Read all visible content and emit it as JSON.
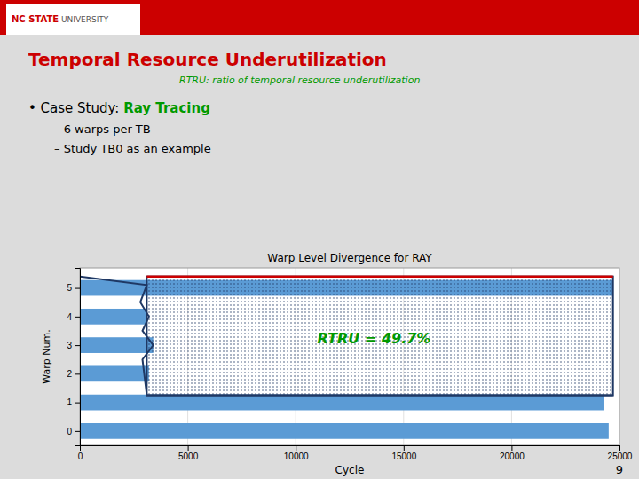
{
  "page": {
    "header_bold": "NC STATE",
    "header_regular": " UNIVERSITY",
    "title": "Temporal Resource Underutilization",
    "subtitle": "RTRU: ratio of temporal resource underutilization",
    "bullet": "• Case Study: ",
    "bullet_emphasis": "Ray Tracing",
    "items": [
      "– 6 warps per TB",
      "– Study TB0 as an example"
    ],
    "page_number": "9"
  },
  "chart_data": {
    "type": "bar",
    "orientation": "horizontal",
    "title": "Warp Level Divergence for RAY",
    "xlabel": "Cycle",
    "ylabel": "Warp Num.",
    "categories": [
      0,
      1,
      2,
      3,
      4,
      5
    ],
    "values": [
      24500,
      24300,
      3200,
      3400,
      3100,
      24700
    ],
    "color": "#5b9bd5",
    "xlim": [
      0,
      25000
    ],
    "xticks": [
      0,
      5000,
      10000,
      15000,
      20000,
      25000
    ],
    "ylim": [
      -0.5,
      5.7
    ],
    "yticks": [
      0,
      1,
      2,
      3,
      4,
      5
    ],
    "grid": true,
    "region": {
      "x": [
        3100,
        24700
      ],
      "y": [
        1.25,
        5.4
      ],
      "color": "#1f3864"
    },
    "divergence_line": {
      "x": [
        0,
        3100,
        2800,
        3200,
        2900,
        3400,
        2900,
        3100,
        24700
      ],
      "y": [
        5.4,
        5.1,
        4.5,
        4.0,
        3.5,
        3.0,
        2.5,
        1.25,
        1.25
      ],
      "color": "#1f3864"
    },
    "annotations": [
      {
        "text": "RTRU = 49.7%",
        "x": 11000,
        "y": 3.2
      }
    ]
  }
}
